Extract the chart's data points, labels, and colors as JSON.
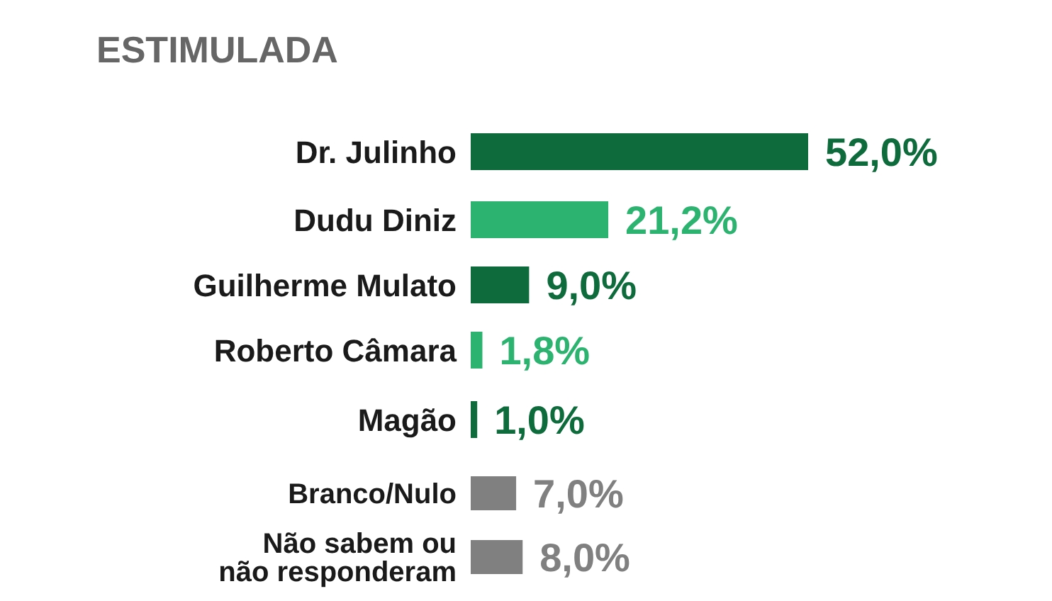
{
  "chart_data": {
    "type": "bar",
    "orientation": "horizontal",
    "title": "ESTIMULADA",
    "categories": [
      "Dr. Julinho",
      "Dudu Diniz",
      "Guilherme Mulato",
      "Roberto Câmara",
      "Magão",
      "Branco/Nulo",
      "Não sabem ou não responderam"
    ],
    "values": [
      52.0,
      21.2,
      9.0,
      1.8,
      1.0,
      7.0,
      8.0
    ],
    "colors": [
      "#0e6b3b",
      "#2db370",
      "#0e6b3b",
      "#2db370",
      "#0e6b3b",
      "#808080",
      "#808080"
    ],
    "value_labels": [
      "52,0%",
      "21,2%",
      "9,0%",
      "1,8%",
      "1,0%",
      "7,0%",
      "8,0%"
    ]
  }
}
